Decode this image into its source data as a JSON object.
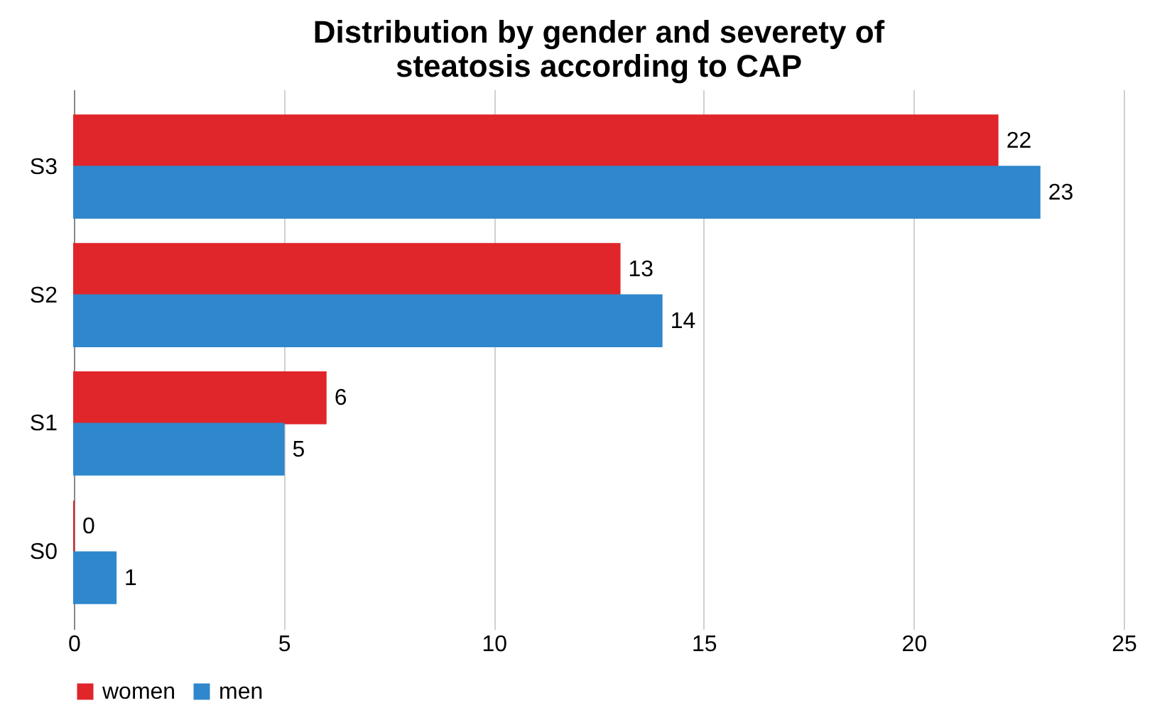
{
  "chart_data": {
    "type": "bar",
    "orientation": "horizontal",
    "title": "Distribution by gender and severety of steatosis according to CAP",
    "categories": [
      "S3",
      "S2",
      "S1",
      "S0"
    ],
    "series": [
      {
        "name": "women",
        "color": "#e0252b",
        "values": [
          22,
          13,
          6,
          0
        ]
      },
      {
        "name": "men",
        "color": "#2f87cc",
        "values": [
          23,
          14,
          5,
          1
        ]
      }
    ],
    "xlim": [
      0,
      25
    ],
    "xticks": [
      0,
      5,
      10,
      15,
      20,
      25
    ],
    "grid": "x",
    "legend": "bottom",
    "data_labels": true
  }
}
